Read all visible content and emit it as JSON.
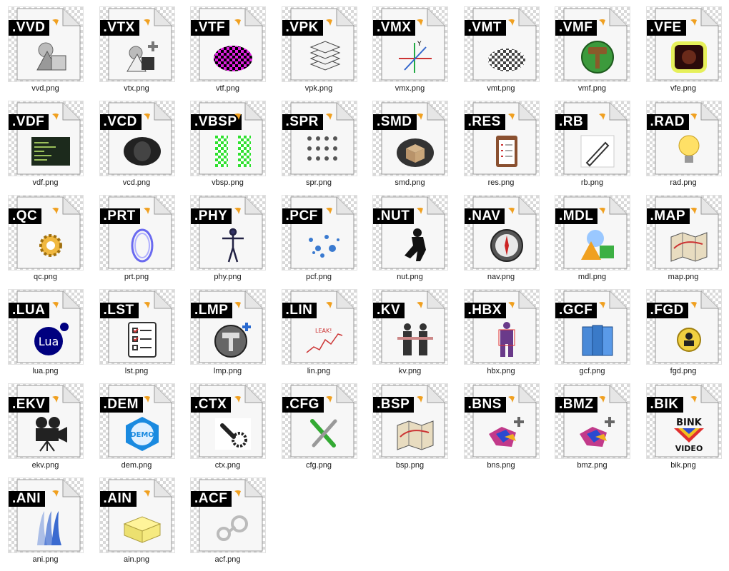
{
  "files": [
    {
      "ext": ".VVD",
      "name": "vvd.png",
      "icon": "shapes-icon"
    },
    {
      "ext": ".VTX",
      "name": "vtx.png",
      "icon": "shapes-plus-icon"
    },
    {
      "ext": ".VTF",
      "name": "vtf.png",
      "icon": "magenta-checker-icon"
    },
    {
      "ext": ".VPK",
      "name": "vpk.png",
      "icon": "stack-icon"
    },
    {
      "ext": ".VMX",
      "name": "vmx.png",
      "icon": "axes-icon"
    },
    {
      "ext": ".VMT",
      "name": "vmt.png",
      "icon": "checker-icon"
    },
    {
      "ext": ".VMF",
      "name": "vmf.png",
      "icon": "hammer-green-icon"
    },
    {
      "ext": ".VFE",
      "name": "vfe.png",
      "icon": "glow-face-icon"
    },
    {
      "ext": ".VDF",
      "name": "vdf.png",
      "icon": "terminal-icon"
    },
    {
      "ext": ".VCD",
      "name": "vcd.png",
      "icon": "dark-face-icon"
    },
    {
      "ext": ".VBSP",
      "name": "vbsp.png",
      "icon": "green-checker-icon"
    },
    {
      "ext": ".SPR",
      "name": "spr.png",
      "icon": "sprites-icon"
    },
    {
      "ext": ".SMD",
      "name": "smd.png",
      "icon": "box-icon"
    },
    {
      "ext": ".RES",
      "name": "res.png",
      "icon": "clipboard-icon"
    },
    {
      "ext": ".RB",
      "name": "rb.png",
      "icon": "pen-icon"
    },
    {
      "ext": ".RAD",
      "name": "rad.png",
      "icon": "bulb-icon"
    },
    {
      "ext": ".QC",
      "name": "qc.png",
      "icon": "gear-icon"
    },
    {
      "ext": ".PRT",
      "name": "prt.png",
      "icon": "portal-ring-icon"
    },
    {
      "ext": ".PHY",
      "name": "phy.png",
      "icon": "skeleton-icon"
    },
    {
      "ext": ".PCF",
      "name": "pcf.png",
      "icon": "particles-icon"
    },
    {
      "ext": ".NUT",
      "name": "nut.png",
      "icon": "ninja-icon"
    },
    {
      "ext": ".NAV",
      "name": "nav.png",
      "icon": "compass-icon"
    },
    {
      "ext": ".MDL",
      "name": "mdl.png",
      "icon": "primitives-icon"
    },
    {
      "ext": ".MAP",
      "name": "map.png",
      "icon": "map-icon"
    },
    {
      "ext": ".LUA",
      "name": "lua.png",
      "icon": "lua-logo-icon",
      "icon_text": "Lua"
    },
    {
      "ext": ".LST",
      "name": "lst.png",
      "icon": "checklist-icon"
    },
    {
      "ext": ".LMP",
      "name": "lmp.png",
      "icon": "hammer-plus-icon"
    },
    {
      "ext": ".LIN",
      "name": "lin.png",
      "icon": "line-graph-icon",
      "icon_text": "LEAK!"
    },
    {
      "ext": ".KV",
      "name": "kv.png",
      "icon": "soldiers-icon"
    },
    {
      "ext": ".HBX",
      "name": "hbx.png",
      "icon": "hitbox-icon"
    },
    {
      "ext": ".GCF",
      "name": "gcf.png",
      "icon": "books-icon"
    },
    {
      "ext": ".FGD",
      "name": "fgd.png",
      "icon": "badge-person-icon"
    },
    {
      "ext": ".EKV",
      "name": "ekv.png",
      "icon": "camera-icon"
    },
    {
      "ext": ".DEM",
      "name": "dem.png",
      "icon": "demo-badge-icon",
      "icon_text": "DEMO"
    },
    {
      "ext": ".CTX",
      "name": "ctx.png",
      "icon": "wrench-gear-icon"
    },
    {
      "ext": ".CFG",
      "name": "cfg.png",
      "icon": "tools-icon"
    },
    {
      "ext": ".BSP",
      "name": "bsp.png",
      "icon": "map-icon"
    },
    {
      "ext": ".BNS",
      "name": "bns.png",
      "icon": "mesh-plus-icon"
    },
    {
      "ext": ".BMZ",
      "name": "bmz.png",
      "icon": "mesh-plus-icon"
    },
    {
      "ext": ".BIK",
      "name": "bik.png",
      "icon": "bink-logo-icon",
      "icon_text": "BINK",
      "icon_text2": "VIDEO"
    },
    {
      "ext": ".ANI",
      "name": "ani.png",
      "icon": "motion-trail-icon"
    },
    {
      "ext": ".AIN",
      "name": "ain.png",
      "icon": "yellow-box-icon"
    },
    {
      "ext": ".ACF",
      "name": "acf.png",
      "icon": "steam-logo-icon"
    }
  ],
  "colors": {
    "accent_logo": "#f0a020",
    "checker": "#d9d9d9",
    "ext_bg": "#000000",
    "ext_text": "#ffffff"
  }
}
